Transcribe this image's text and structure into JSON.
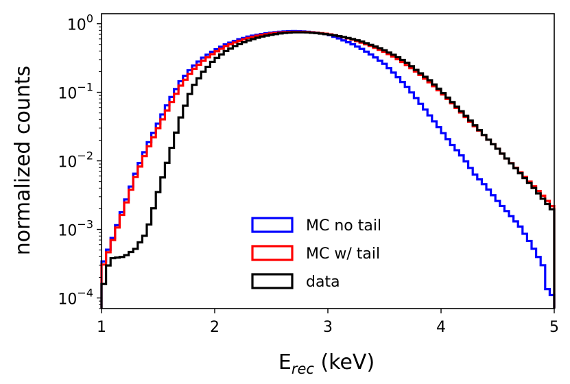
{
  "chart_data": {
    "type": "step-histogram",
    "xlabel_main": "E",
    "xlabel_sub": "rec",
    "xlabel_unit": " (keV)",
    "ylabel": "normalized counts",
    "yscale": "log",
    "xlim": [
      1,
      5
    ],
    "ylim": [
      7e-05,
      1.4
    ],
    "x_ticks": [
      1,
      2,
      3,
      4,
      5
    ],
    "x_tick_labels": [
      "1",
      "2",
      "3",
      "4",
      "5"
    ],
    "y_ticks": [
      0.0001,
      0.001,
      0.01,
      0.1,
      1
    ],
    "y_tick_labels": [
      {
        "base": "10",
        "exp": "−4"
      },
      {
        "base": "10",
        "exp": "−3"
      },
      {
        "base": "10",
        "exp": "−2"
      },
      {
        "base": "10",
        "exp": "−1"
      },
      {
        "base": "10",
        "exp": "0"
      }
    ],
    "bin_width": 0.04,
    "legend_position": "lower-center",
    "series": [
      {
        "name": "MC no tail",
        "color": "#0000ff",
        "curve": [
          [
            1.0,
            0.00028
          ],
          [
            1.1,
            0.00075
          ],
          [
            1.2,
            0.0022
          ],
          [
            1.3,
            0.0065
          ],
          [
            1.4,
            0.016
          ],
          [
            1.5,
            0.035
          ],
          [
            1.6,
            0.075
          ],
          [
            1.7,
            0.145
          ],
          [
            1.8,
            0.23
          ],
          [
            1.9,
            0.32
          ],
          [
            2.0,
            0.41
          ],
          [
            2.1,
            0.5
          ],
          [
            2.2,
            0.58
          ],
          [
            2.3,
            0.65
          ],
          [
            2.4,
            0.7
          ],
          [
            2.5,
            0.74
          ],
          [
            2.6,
            0.77
          ],
          [
            2.7,
            0.78
          ],
          [
            2.8,
            0.77
          ],
          [
            2.9,
            0.74
          ],
          [
            3.0,
            0.7
          ],
          [
            3.1,
            0.61
          ],
          [
            3.2,
            0.52
          ],
          [
            3.3,
            0.43
          ],
          [
            3.4,
            0.34
          ],
          [
            3.5,
            0.26
          ],
          [
            3.6,
            0.18
          ],
          [
            3.7,
            0.12
          ],
          [
            3.8,
            0.075
          ],
          [
            3.9,
            0.046
          ],
          [
            4.0,
            0.028
          ],
          [
            4.1,
            0.017
          ],
          [
            4.2,
            0.011
          ],
          [
            4.3,
            0.0063
          ],
          [
            4.4,
            0.0042
          ],
          [
            4.5,
            0.0026
          ],
          [
            4.6,
            0.0017
          ],
          [
            4.7,
            0.0011
          ],
          [
            4.8,
            0.0006
          ],
          [
            4.9,
            0.0003
          ],
          [
            4.95,
            0.00011
          ],
          [
            5.0,
            0.00011
          ]
        ]
      },
      {
        "name": "MC w/ tail",
        "color": "#ff0000",
        "curve": [
          [
            1.0,
            0.00025
          ],
          [
            1.1,
            0.0007
          ],
          [
            1.2,
            0.002
          ],
          [
            1.3,
            0.0058
          ],
          [
            1.4,
            0.014
          ],
          [
            1.5,
            0.03
          ],
          [
            1.6,
            0.063
          ],
          [
            1.7,
            0.125
          ],
          [
            1.8,
            0.205
          ],
          [
            1.9,
            0.29
          ],
          [
            2.0,
            0.38
          ],
          [
            2.1,
            0.47
          ],
          [
            2.2,
            0.55
          ],
          [
            2.3,
            0.62
          ],
          [
            2.4,
            0.68
          ],
          [
            2.5,
            0.72
          ],
          [
            2.6,
            0.75
          ],
          [
            2.7,
            0.76
          ],
          [
            2.8,
            0.76
          ],
          [
            2.9,
            0.74
          ],
          [
            3.0,
            0.71
          ],
          [
            3.1,
            0.66
          ],
          [
            3.2,
            0.6
          ],
          [
            3.3,
            0.53
          ],
          [
            3.4,
            0.46
          ],
          [
            3.5,
            0.39
          ],
          [
            3.6,
            0.32
          ],
          [
            3.7,
            0.25
          ],
          [
            3.8,
            0.19
          ],
          [
            3.9,
            0.14
          ],
          [
            4.0,
            0.1
          ],
          [
            4.1,
            0.069
          ],
          [
            4.2,
            0.047
          ],
          [
            4.3,
            0.032
          ],
          [
            4.4,
            0.022
          ],
          [
            4.5,
            0.015
          ],
          [
            4.6,
            0.01
          ],
          [
            4.7,
            0.0068
          ],
          [
            4.8,
            0.0046
          ],
          [
            4.9,
            0.0031
          ],
          [
            5.0,
            0.002
          ]
        ]
      },
      {
        "name": "data",
        "color": "#000000",
        "curve": [
          [
            1.0,
            0.00011
          ],
          [
            1.05,
            0.00028
          ],
          [
            1.1,
            0.00038
          ],
          [
            1.2,
            0.0004
          ],
          [
            1.3,
            0.00052
          ],
          [
            1.4,
            0.0009
          ],
          [
            1.5,
            0.0035
          ],
          [
            1.6,
            0.012
          ],
          [
            1.7,
            0.043
          ],
          [
            1.8,
            0.115
          ],
          [
            1.9,
            0.2
          ],
          [
            2.0,
            0.3
          ],
          [
            2.1,
            0.4
          ],
          [
            2.2,
            0.49
          ],
          [
            2.3,
            0.57
          ],
          [
            2.4,
            0.64
          ],
          [
            2.5,
            0.69
          ],
          [
            2.6,
            0.73
          ],
          [
            2.7,
            0.75
          ],
          [
            2.8,
            0.75
          ],
          [
            2.9,
            0.73
          ],
          [
            3.0,
            0.7
          ],
          [
            3.1,
            0.66
          ],
          [
            3.2,
            0.61
          ],
          [
            3.3,
            0.55
          ],
          [
            3.4,
            0.48
          ],
          [
            3.5,
            0.41
          ],
          [
            3.6,
            0.34
          ],
          [
            3.7,
            0.27
          ],
          [
            3.8,
            0.2
          ],
          [
            3.9,
            0.15
          ],
          [
            4.0,
            0.105
          ],
          [
            4.1,
            0.072
          ],
          [
            4.2,
            0.049
          ],
          [
            4.3,
            0.033
          ],
          [
            4.4,
            0.022
          ],
          [
            4.5,
            0.015
          ],
          [
            4.6,
            0.01
          ],
          [
            4.7,
            0.0066
          ],
          [
            4.8,
            0.0044
          ],
          [
            4.9,
            0.0028
          ],
          [
            5.0,
            0.0018
          ]
        ]
      }
    ]
  }
}
